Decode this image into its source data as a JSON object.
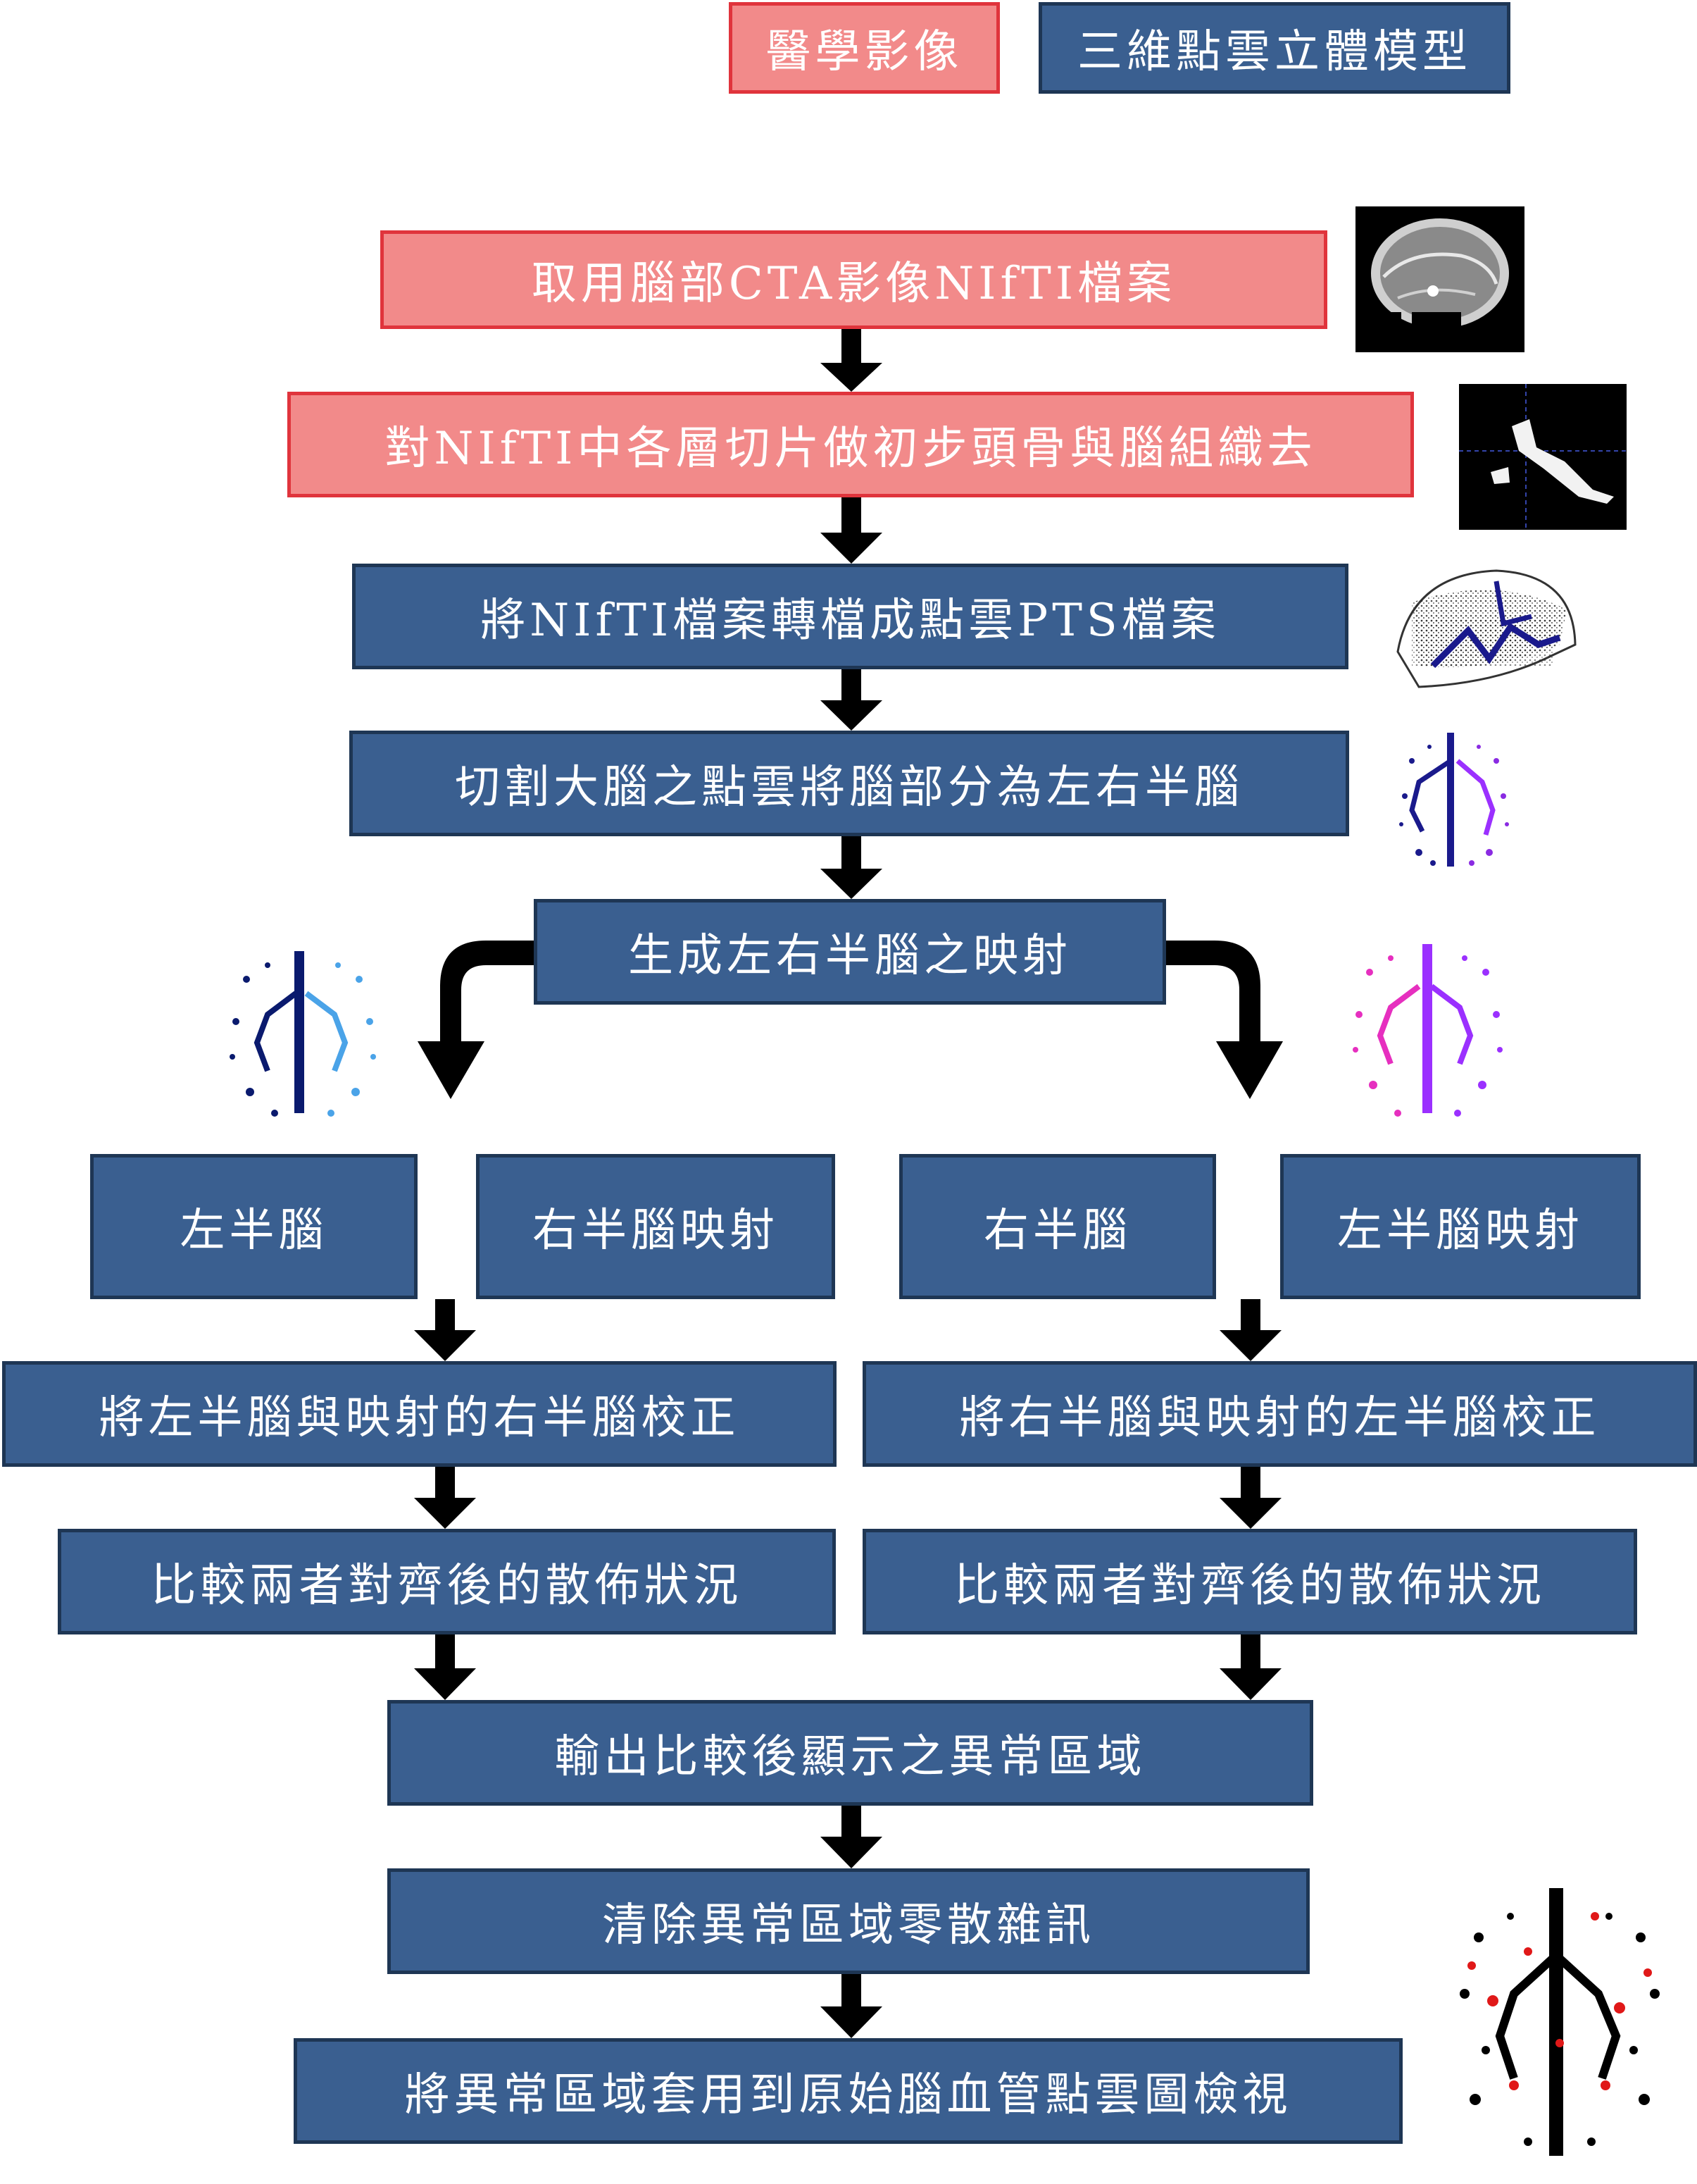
{
  "legend": {
    "medical_image": "醫學影像",
    "point_cloud_model": "三維點雲立體模型"
  },
  "steps": {
    "s1": "取用腦部CTA影像NIfTI檔案",
    "s2": "對NIfTI中各層切片做初步頭骨與腦組織去",
    "s3": "將NIfTI檔案轉檔成點雲PTS檔案",
    "s4": "切割大腦之點雲將腦部分為左右半腦",
    "s5": "生成左右半腦之映射",
    "left_half": "左半腦",
    "right_half_map": "右半腦映射",
    "right_half": "右半腦",
    "left_half_map": "左半腦映射",
    "calib_left": "將左半腦與映射的右半腦校正",
    "calib_right": "將右半腦與映射的左半腦校正",
    "compare_left": "比較兩者對齊後的散佈狀況",
    "compare_right": "比較兩者對齊後的散佈狀況",
    "output": "輸出比較後顯示之異常區域",
    "clean": "清除異常區域零散雜訊",
    "apply": "將異常區域套用到原始腦血管點雲圖檢視"
  },
  "colors": {
    "blue_fill": "#3a5f90",
    "blue_border": "#1e3654",
    "pink_fill": "#f28a8a",
    "pink_border": "#e0343c",
    "arrow": "#000000"
  },
  "icons": [
    "ct-slice-image",
    "skull-stripped-slice",
    "point-cloud-3d",
    "split-hemispheres",
    "left-mirror-pointcloud",
    "right-mirror-pointcloud",
    "anomaly-result-pointcloud"
  ]
}
